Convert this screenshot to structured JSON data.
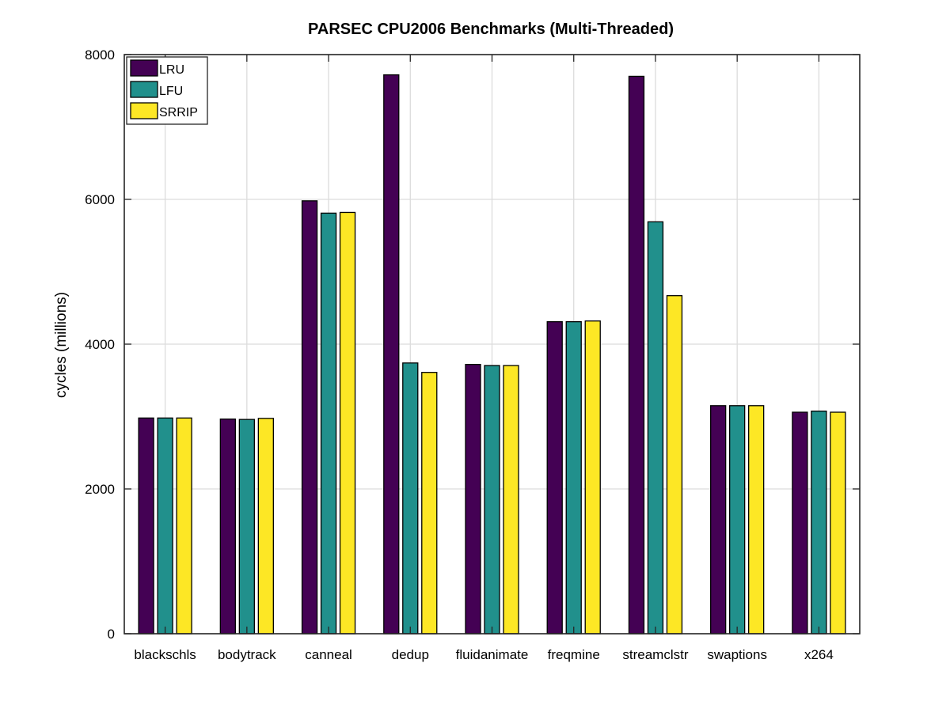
{
  "chart_data": {
    "type": "bar",
    "title": "PARSEC CPU2006 Benchmarks (Multi-Threaded)",
    "xlabel": "",
    "ylabel": "cycles (millions)",
    "ylim": [
      0,
      8000
    ],
    "yticks": [
      0,
      2000,
      4000,
      6000,
      8000
    ],
    "grid": true,
    "legend_position": "top-left",
    "categories": [
      "blackschls",
      "bodytrack",
      "canneal",
      "dedup",
      "fluidanimate",
      "freqmine",
      "streamclstr",
      "swaptions",
      "x264"
    ],
    "series": [
      {
        "name": "LRU",
        "color": "#440154",
        "values": [
          2980,
          2965,
          5980,
          7720,
          3720,
          4310,
          7700,
          3150,
          3060
        ]
      },
      {
        "name": "LFU",
        "color": "#21908C",
        "values": [
          2980,
          2960,
          5810,
          3740,
          3705,
          4310,
          5690,
          3150,
          3075
        ]
      },
      {
        "name": "SRRIP",
        "color": "#FDE725",
        "values": [
          2980,
          2975,
          5820,
          3610,
          3705,
          4320,
          4670,
          3150,
          3060
        ]
      }
    ]
  }
}
